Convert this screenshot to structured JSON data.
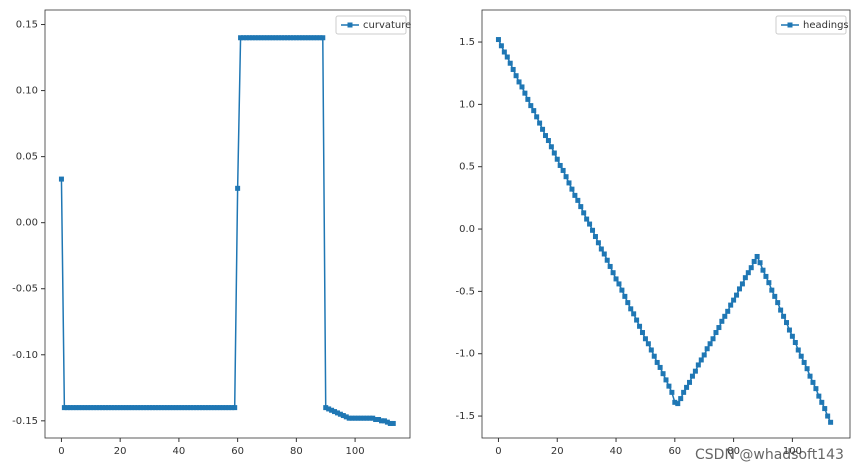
{
  "chart_data": [
    {
      "type": "line",
      "legend": "upper right",
      "marker": "square",
      "x": [
        0,
        1,
        2,
        3,
        4,
        5,
        6,
        7,
        8,
        9,
        10,
        11,
        12,
        13,
        14,
        15,
        16,
        17,
        18,
        19,
        20,
        21,
        22,
        23,
        24,
        25,
        26,
        27,
        28,
        29,
        30,
        31,
        32,
        33,
        34,
        35,
        36,
        37,
        38,
        39,
        40,
        41,
        42,
        43,
        44,
        45,
        46,
        47,
        48,
        49,
        50,
        51,
        52,
        53,
        54,
        55,
        56,
        57,
        58,
        59,
        60,
        61,
        62,
        63,
        64,
        65,
        66,
        67,
        68,
        69,
        70,
        71,
        72,
        73,
        74,
        75,
        76,
        77,
        78,
        79,
        80,
        81,
        82,
        83,
        84,
        85,
        86,
        87,
        88,
        89,
        90,
        91,
        92,
        93,
        94,
        95,
        96,
        97,
        98,
        99,
        100,
        101,
        102,
        103,
        104,
        105,
        106,
        107,
        108,
        109,
        110,
        111,
        112,
        113
      ],
      "series": [
        {
          "name": "curvature",
          "color": "#1f77b4",
          "values": [
            0.033,
            -0.14,
            -0.14,
            -0.14,
            -0.14,
            -0.14,
            -0.14,
            -0.14,
            -0.14,
            -0.14,
            -0.14,
            -0.14,
            -0.14,
            -0.14,
            -0.14,
            -0.14,
            -0.14,
            -0.14,
            -0.14,
            -0.14,
            -0.14,
            -0.14,
            -0.14,
            -0.14,
            -0.14,
            -0.14,
            -0.14,
            -0.14,
            -0.14,
            -0.14,
            -0.14,
            -0.14,
            -0.14,
            -0.14,
            -0.14,
            -0.14,
            -0.14,
            -0.14,
            -0.14,
            -0.14,
            -0.14,
            -0.14,
            -0.14,
            -0.14,
            -0.14,
            -0.14,
            -0.14,
            -0.14,
            -0.14,
            -0.14,
            -0.14,
            -0.14,
            -0.14,
            -0.14,
            -0.14,
            -0.14,
            -0.14,
            -0.14,
            -0.14,
            -0.14,
            0.026,
            0.14,
            0.14,
            0.14,
            0.14,
            0.14,
            0.14,
            0.14,
            0.14,
            0.14,
            0.14,
            0.14,
            0.14,
            0.14,
            0.14,
            0.14,
            0.14,
            0.14,
            0.14,
            0.14,
            0.14,
            0.14,
            0.14,
            0.14,
            0.14,
            0.14,
            0.14,
            0.14,
            0.14,
            0.14,
            -0.14,
            -0.141,
            -0.142,
            -0.143,
            -0.144,
            -0.145,
            -0.146,
            -0.147,
            -0.148,
            -0.148,
            -0.148,
            -0.148,
            -0.148,
            -0.148,
            -0.148,
            -0.148,
            -0.148,
            -0.149,
            -0.149,
            -0.15,
            -0.15,
            -0.151,
            -0.152,
            -0.152
          ]
        }
      ],
      "xlim": [
        -5.6,
        118.7
      ],
      "ylim": [
        -0.163,
        0.161
      ],
      "xticks": [
        0,
        20,
        40,
        60,
        80,
        100
      ],
      "yticks": [
        {
          "value": 0.15,
          "label": "0.15"
        },
        {
          "value": 0.1,
          "label": "0.10"
        },
        {
          "value": 0.05,
          "label": "0.05"
        },
        {
          "value": 0,
          "label": "0.00"
        },
        {
          "value": -0.05,
          "label": "-0.05"
        },
        {
          "value": -0.1,
          "label": "-0.10"
        },
        {
          "value": -0.15,
          "label": "-0.15"
        }
      ]
    },
    {
      "type": "line",
      "legend": "upper right",
      "marker": "square",
      "x": [
        0,
        1,
        2,
        3,
        4,
        5,
        6,
        7,
        8,
        9,
        10,
        11,
        12,
        13,
        14,
        15,
        16,
        17,
        18,
        19,
        20,
        21,
        22,
        23,
        24,
        25,
        26,
        27,
        28,
        29,
        30,
        31,
        32,
        33,
        34,
        35,
        36,
        37,
        38,
        39,
        40,
        41,
        42,
        43,
        44,
        45,
        46,
        47,
        48,
        49,
        50,
        51,
        52,
        53,
        54,
        55,
        56,
        57,
        58,
        59,
        60,
        61,
        62,
        63,
        64,
        65,
        66,
        67,
        68,
        69,
        70,
        71,
        72,
        73,
        74,
        75,
        76,
        77,
        78,
        79,
        80,
        81,
        82,
        83,
        84,
        85,
        86,
        87,
        88,
        89,
        90,
        91,
        92,
        93,
        94,
        95,
        96,
        97,
        98,
        99,
        100,
        101,
        102,
        103,
        104,
        105,
        106,
        107,
        108,
        109,
        110,
        111,
        112,
        113
      ],
      "series": [
        {
          "name": "headings",
          "color": "#1f77b4",
          "values": [
            1.52,
            1.47,
            1.42,
            1.38,
            1.33,
            1.28,
            1.23,
            1.18,
            1.14,
            1.09,
            1.04,
            0.99,
            0.95,
            0.9,
            0.85,
            0.8,
            0.75,
            0.71,
            0.66,
            0.61,
            0.56,
            0.51,
            0.47,
            0.42,
            0.37,
            0.32,
            0.27,
            0.23,
            0.18,
            0.13,
            0.08,
            0.04,
            -0.01,
            -0.06,
            -0.11,
            -0.16,
            -0.2,
            -0.25,
            -0.3,
            -0.35,
            -0.4,
            -0.44,
            -0.49,
            -0.54,
            -0.59,
            -0.64,
            -0.68,
            -0.73,
            -0.78,
            -0.83,
            -0.88,
            -0.92,
            -0.97,
            -1.02,
            -1.07,
            -1.11,
            -1.16,
            -1.21,
            -1.26,
            -1.31,
            -1.39,
            -1.4,
            -1.36,
            -1.31,
            -1.27,
            -1.23,
            -1.18,
            -1.14,
            -1.09,
            -1.05,
            -1.01,
            -0.96,
            -0.92,
            -0.88,
            -0.83,
            -0.79,
            -0.74,
            -0.7,
            -0.66,
            -0.61,
            -0.57,
            -0.53,
            -0.48,
            -0.44,
            -0.39,
            -0.35,
            -0.31,
            -0.26,
            -0.22,
            -0.27,
            -0.33,
            -0.38,
            -0.43,
            -0.49,
            -0.54,
            -0.59,
            -0.65,
            -0.7,
            -0.75,
            -0.81,
            -0.86,
            -0.91,
            -0.97,
            -1.02,
            -1.07,
            -1.12,
            -1.18,
            -1.23,
            -1.28,
            -1.34,
            -1.39,
            -1.44,
            -1.5,
            -1.55
          ]
        }
      ],
      "xlim": [
        -5.6,
        119.6
      ],
      "ylim": [
        -1.676,
        1.757
      ],
      "xticks": [
        0,
        20,
        40,
        60,
        80,
        100
      ],
      "yticks": [
        1.5,
        {
          "value": 1,
          "label": "1.0"
        },
        0.5,
        {
          "value": 0,
          "label": "0.0"
        },
        -0.5,
        {
          "value": -1,
          "label": "-1.0"
        },
        -1.5
      ]
    }
  ],
  "watermark": "CSDN @whadsoft143"
}
